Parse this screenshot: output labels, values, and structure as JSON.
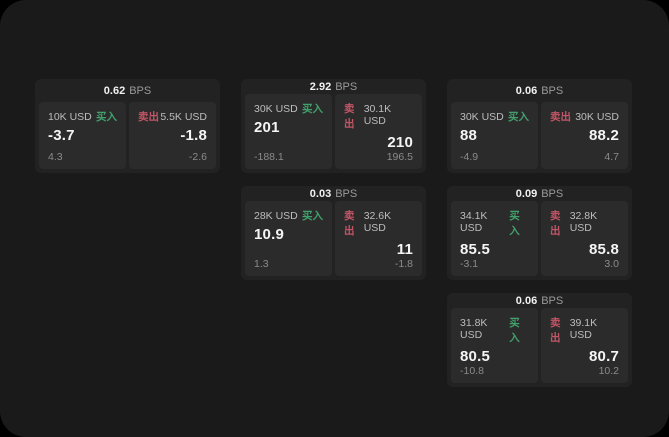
{
  "labels": {
    "bps": "BPS",
    "buy": "买入",
    "sell": "卖出"
  },
  "colors": {
    "surface": "#1a1a1a",
    "card": "#222222",
    "panel": "#2b2b2b",
    "buy": "#42a06c",
    "sell": "#c25566"
  },
  "cards": [
    {
      "bps": "0.62",
      "row": 1,
      "col": 1,
      "buy": {
        "amount": "10K USD",
        "value": "-3.7",
        "delta": "4.3"
      },
      "sell": {
        "amount": "5.5K USD",
        "value": "-1.8",
        "delta": "-2.6"
      }
    },
    {
      "bps": "2.92",
      "row": 1,
      "col": 2,
      "buy": {
        "amount": "30K USD",
        "value": "201",
        "delta": "-188.1"
      },
      "sell": {
        "amount": "30.1K USD",
        "value": "210",
        "delta": "196.5"
      }
    },
    {
      "bps": "0.06",
      "row": 1,
      "col": 3,
      "buy": {
        "amount": "30K USD",
        "value": "88",
        "delta": "-4.9"
      },
      "sell": {
        "amount": "30K USD",
        "value": "88.2",
        "delta": "4.7"
      }
    },
    {
      "bps": "0.03",
      "row": 2,
      "col": 2,
      "buy": {
        "amount": "28K USD",
        "value": "10.9",
        "delta": "1.3"
      },
      "sell": {
        "amount": "32.6K USD",
        "value": "11",
        "delta": "-1.8"
      }
    },
    {
      "bps": "0.09",
      "row": 2,
      "col": 3,
      "buy": {
        "amount": "34.1K USD",
        "value": "85.5",
        "delta": "-3.1"
      },
      "sell": {
        "amount": "32.8K USD",
        "value": "85.8",
        "delta": "3.0"
      }
    },
    {
      "bps": "0.06",
      "row": 3,
      "col": 3,
      "buy": {
        "amount": "31.8K USD",
        "value": "80.5",
        "delta": "-10.8"
      },
      "sell": {
        "amount": "39.1K USD",
        "value": "80.7",
        "delta": "10.2"
      }
    }
  ]
}
